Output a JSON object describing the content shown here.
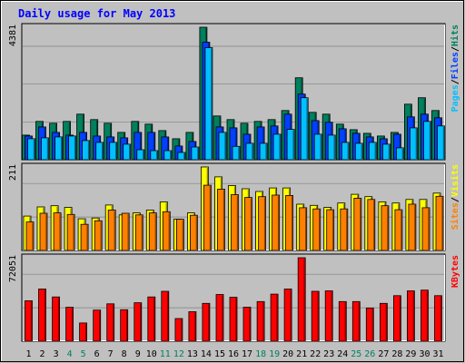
{
  "chart_data": {
    "type": "bar",
    "title": "Daily usage for May 2013",
    "categories": [
      "1",
      "2",
      "3",
      "4",
      "5",
      "6",
      "7",
      "8",
      "9",
      "10",
      "11",
      "12",
      "13",
      "14",
      "15",
      "16",
      "17",
      "18",
      "19",
      "20",
      "21",
      "22",
      "23",
      "24",
      "25",
      "26",
      "27",
      "28",
      "29",
      "30",
      "31"
    ],
    "weekend_days": [
      "4",
      "5",
      "11",
      "12",
      "18",
      "19",
      "25",
      "26"
    ],
    "colors": {
      "title": "#0000ff",
      "pages": "#00c0ff",
      "files": "#0040ff",
      "hits": "#00805c",
      "visits": "#ffff00",
      "sites": "#ff8000",
      "kbytes": "#ff0000",
      "weekend_label": "#00805c",
      "weekday_label": "#000000"
    },
    "panels": [
      {
        "id": "hits-files-pages",
        "max_label": "4381",
        "ylim": [
          0,
          4381
        ],
        "legend": [
          "Pages",
          "/",
          "Files",
          "/",
          "Hits"
        ],
        "series": [
          {
            "name": "Hits",
            "values": [
              813,
              1265,
              1205,
              1265,
              1506,
              1325,
              1205,
              904,
              1265,
              1175,
              964,
              693,
              904,
              4381,
              1445,
              1325,
              1205,
              1265,
              1325,
              1627,
              2711,
              1566,
              1506,
              1175,
              994,
              873,
              784,
              904,
              1837,
              2048,
              1626
            ]
          },
          {
            "name": "Files",
            "values": [
              783,
              1084,
              904,
              813,
              904,
              783,
              753,
              723,
              904,
              904,
              753,
              452,
              602,
              3886,
              1084,
              1054,
              844,
              1084,
              1115,
              1506,
              2168,
              1294,
              1235,
              1024,
              873,
              753,
              693,
              844,
              1415,
              1506,
              1386
            ]
          },
          {
            "name": "Pages",
            "values": [
              693,
              723,
              753,
              783,
              632,
              572,
              572,
              512,
              331,
              301,
              301,
              241,
              421,
              3705,
              904,
              442,
              542,
              542,
              843,
              1001,
              2048,
              843,
              813,
              572,
              542,
              572,
              512,
              392,
              1054,
              1265,
              1115
            ]
          }
        ]
      },
      {
        "id": "visits-sites",
        "max_label": "211",
        "ylim": [
          0,
          211
        ],
        "legend": [
          "Sites",
          "/",
          "Visits"
        ],
        "series": [
          {
            "name": "Visits",
            "values": [
              87,
              110,
              113,
              109,
              80,
              82,
              115,
              90,
              95,
              102,
              123,
              79,
              95,
              211,
              186,
              164,
              156,
              149,
              158,
              158,
              117,
              114,
              109,
              120,
              142,
              136,
              123,
              120,
              129,
              129,
              145
            ]
          },
          {
            "name": "Sites",
            "values": [
              72,
              94,
              95,
              91,
              66,
              75,
              102,
              94,
              90,
              95,
              98,
              79,
              89,
              165,
              155,
              141,
              134,
              136,
              140,
              139,
              108,
              105,
              103,
              105,
              132,
              129,
              113,
              103,
              117,
              108,
              137
            ]
          }
        ]
      },
      {
        "id": "kbytes",
        "max_label": "72051",
        "ylim": [
          0,
          72051
        ],
        "legend": [
          "KBytes"
        ],
        "series": [
          {
            "name": "KBytes",
            "values": [
              34964,
              45045,
              38242,
              29256,
              15764,
              26827,
              32286,
              27163,
              33212,
              38242,
              43112,
              19542,
              25483,
              32626,
              40339,
              37907,
              29340,
              34208,
              40675,
              45045,
              72051,
              43112,
              43448,
              34208,
              34208,
              28668,
              32626,
              39333,
              43448,
              44122,
              39333
            ]
          }
        ]
      }
    ]
  }
}
